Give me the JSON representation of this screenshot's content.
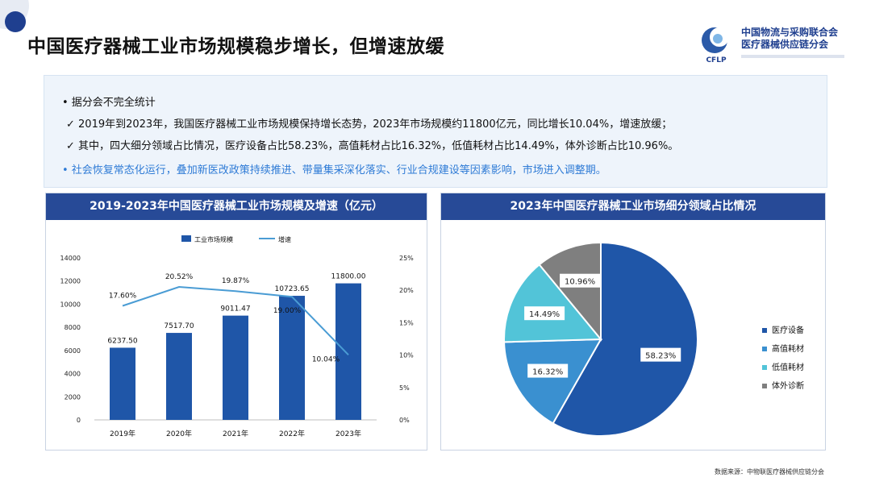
{
  "header": {
    "title": "中国医疗器械工业市场规模稳步增长，但增速放缓",
    "logo_line1": "中国物流与采购联合会",
    "logo_line2": "医疗器械供应链分会",
    "logo_abbr": "CFLP"
  },
  "summary": {
    "bullet_1": "•  据分会不完全统计",
    "check_1": "✓ 2019年到2023年，我国医疗器械工业市场规模保持增长态势，2023年市场规模约11800亿元，同比增长10.04%，增速放缓；",
    "check_2": "✓ 其中，四大细分领域占比情况，医疗设备占比58.23%，高值耗材占比16.32%，低值耗材占比14.49%，体外诊断占比10.96%。",
    "bullet_2": "•  社会恢复常态化运行，叠加新医改政策持续推进、带量集采深化落实、行业合规建设等因素影响，市场进入调整期。"
  },
  "footer": {
    "source": "数据来源：中物联医疗器械供应链分会"
  },
  "chart_data": [
    {
      "type": "bar",
      "title": "2019-2023年中国医疗器械工业市场规模及增速（亿元）",
      "categories": [
        "2019年",
        "2020年",
        "2021年",
        "2022年",
        "2023年"
      ],
      "series": [
        {
          "name": "工业市场规模",
          "type": "bar",
          "axis": "left",
          "values": [
            6237.5,
            7517.7,
            9011.47,
            10723.65,
            11800.0
          ],
          "labels": [
            "6237.50",
            "7517.70",
            "9011.47",
            "10723.65",
            "11800.00"
          ],
          "color": "#1f56a8"
        },
        {
          "name": "增速",
          "type": "line",
          "axis": "right",
          "values": [
            17.6,
            20.52,
            19.87,
            19.0,
            10.04
          ],
          "labels": [
            "17.60%",
            "20.52%",
            "19.87%",
            "19.00%",
            "10.04%"
          ],
          "color": "#4a9cd4"
        }
      ],
      "y_left": {
        "ylim": [
          0,
          14000
        ],
        "ticks": [
          "0",
          "2000",
          "4000",
          "6000",
          "8000",
          "10000",
          "12000",
          "14000"
        ]
      },
      "y_right": {
        "ylim": [
          0,
          25
        ],
        "ticks": [
          "0%",
          "5%",
          "10%",
          "15%",
          "20%",
          "25%"
        ]
      },
      "legend": "top-center",
      "grid": false
    },
    {
      "type": "pie",
      "title": "2023年中国医疗器械工业市场细分领域占比情况",
      "labels": [
        "医疗设备",
        "高值耗材",
        "低值耗材",
        "体外诊断"
      ],
      "values": [
        58.23,
        16.32,
        14.49,
        10.96
      ],
      "value_labels": [
        "58.23%",
        "16.32%",
        "14.49%",
        "10.96%"
      ],
      "colors": [
        "#1f56a8",
        "#3a90d0",
        "#52c4d8",
        "#7f7f7f"
      ],
      "legend": "right"
    }
  ]
}
